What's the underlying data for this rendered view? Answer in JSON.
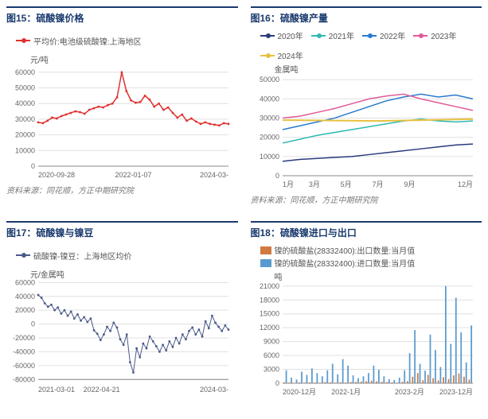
{
  "fig15": {
    "title": "图15：硫酸镍价格",
    "legend": [
      {
        "label": "平均价:电池级硫酸镍:上海地区",
        "color": "#e03030"
      }
    ],
    "ylabel": "元/吨",
    "type": "line",
    "ylim": [
      0,
      65000
    ],
    "yticks": [
      0,
      10000,
      20000,
      30000,
      40000,
      50000,
      60000
    ],
    "xticks": [
      "2020-09-28",
      "2022-01-07",
      "2024-03-"
    ],
    "series": [
      {
        "color": "#e03030",
        "width": 1.5,
        "marker": "dot",
        "y": [
          28000,
          27500,
          29000,
          31000,
          30500,
          32000,
          33000,
          34000,
          35000,
          34500,
          33500,
          36000,
          37000,
          38000,
          37500,
          39000,
          40000,
          44000,
          60000,
          48000,
          42000,
          40500,
          41000,
          45000,
          42500,
          38000,
          40000,
          36000,
          37500,
          34000,
          31000,
          33000,
          29000,
          30500,
          28500,
          27000,
          28000,
          27000,
          26500,
          26000,
          27500,
          27000
        ]
      }
    ],
    "source": "资料来源：同花顺，方正中期研究院"
  },
  "fig16": {
    "title": "图16：硫酸镍产量",
    "legend": [
      {
        "label": "2020年",
        "color": "#2a3a7a"
      },
      {
        "label": "2021年",
        "color": "#2fb8b0"
      },
      {
        "label": "2022年",
        "color": "#2a7ad0"
      },
      {
        "label": "2023年",
        "color": "#e05a9a"
      },
      {
        "label": "2024年",
        "color": "#e8c040"
      }
    ],
    "ylabel": "金属吨",
    "type": "line",
    "ylim": [
      0,
      53000
    ],
    "yticks": [
      0,
      10000,
      20000,
      30000,
      40000,
      50000
    ],
    "xticks": [
      "1月",
      "3月",
      "5月",
      "7月",
      "9月",
      "",
      "12月"
    ],
    "series": [
      {
        "color": "#2a3a7a",
        "width": 1.5,
        "y": [
          7500,
          8500,
          9000,
          9500,
          10000,
          11000,
          12000,
          13000,
          14000,
          15000,
          16000,
          16500
        ]
      },
      {
        "color": "#2fb8b0",
        "width": 1.5,
        "y": [
          17000,
          19000,
          21000,
          22500,
          24000,
          25500,
          27000,
          28500,
          29500,
          28500,
          28000,
          28500
        ]
      },
      {
        "color": "#2a7ad0",
        "width": 1.5,
        "y": [
          24000,
          26000,
          28000,
          30000,
          33000,
          36000,
          39000,
          41000,
          42500,
          41000,
          42000,
          40000
        ]
      },
      {
        "color": "#e05a9a",
        "width": 1.5,
        "y": [
          30000,
          31000,
          33000,
          35000,
          37500,
          40000,
          41500,
          42500,
          40000,
          38000,
          36000,
          34000
        ]
      },
      {
        "color": "#e8c040",
        "width": 2,
        "y": [
          29000,
          28500,
          29500
        ]
      }
    ],
    "source": "资料来源：同花顺，方正中期研究院"
  },
  "fig17": {
    "title": "图17：硫酸镍与镍豆",
    "legend": [
      {
        "label": "硫酸镍-镍豆：上海地区均价",
        "color": "#4a5a8a"
      }
    ],
    "ylabel": "元/金属吨",
    "type": "line",
    "ylim": [
      -82000,
      65000
    ],
    "yticks": [
      -80000,
      -60000,
      -40000,
      -20000,
      0,
      20000,
      40000,
      60000
    ],
    "xticks": [
      "2021-03-01",
      "2022-04-21",
      "",
      "2024-03-"
    ],
    "series": [
      {
        "color": "#4a5a8a",
        "width": 1,
        "marker": "dot",
        "y": [
          42000,
          38000,
          30000,
          25000,
          28000,
          20000,
          24000,
          15000,
          20000,
          12000,
          18000,
          8000,
          14000,
          5000,
          10000,
          3000,
          8000,
          -9000,
          -14000,
          -23000,
          -15000,
          -4000,
          -10000,
          2000,
          -5000,
          -22000,
          -30000,
          -15000,
          -55000,
          -70000,
          -35000,
          -48000,
          -28000,
          -35000,
          -18000,
          -25000,
          -32000,
          -40000,
          -30000,
          -38000,
          -25000,
          -33000,
          -20000,
          -28000,
          -15000,
          -22000,
          -10000,
          -5000,
          -15000,
          -8000,
          -18000,
          4000,
          -6000,
          12000,
          2000,
          -4000,
          -10000,
          -2000,
          -8000
        ]
      }
    ],
    "source": ""
  },
  "fig18": {
    "title": "图18：硫酸镍进口与出口",
    "legend": [
      {
        "label": "镍的硫酸盐(28332400):出口数量:当月值",
        "color": "#d07a40"
      },
      {
        "label": "镍的硫酸盐(28332400):进口数量:当月值",
        "color": "#5a9ad0"
      }
    ],
    "ylabel": "吨",
    "type": "bar",
    "ylim": [
      0,
      22000
    ],
    "ytick_step": 3000,
    "yticks": [
      0,
      3000,
      6000,
      9000,
      12000,
      15000,
      18000,
      21000
    ],
    "xticks": [
      "2020-12月",
      "",
      "2022-1月",
      "",
      "2023-2月",
      "",
      "2023-12月"
    ],
    "bars": {
      "export": {
        "color": "#d07a40",
        "y": [
          200,
          150,
          100,
          180,
          120,
          200,
          150,
          100,
          250,
          180,
          120,
          200,
          150,
          250,
          300,
          350,
          450,
          550,
          400,
          300,
          250,
          180,
          120,
          300,
          450,
          1400,
          2200,
          650,
          1800,
          1100,
          600,
          1300,
          900,
          1700,
          2100,
          1400,
          800
        ]
      },
      "import": {
        "color": "#5a9ad0",
        "y": [
          2800,
          1200,
          800,
          2500,
          1800,
          3200,
          2200,
          1500,
          2800,
          4200,
          1900,
          5200,
          3800,
          1700,
          1100,
          1500,
          2200,
          3800,
          2900,
          1500,
          900,
          700,
          1200,
          2800,
          6500,
          11500,
          4200,
          2700,
          10500,
          7200,
          3500,
          21000,
          8500,
          18500,
          11000,
          4500,
          12500
        ]
      }
    },
    "source": ""
  },
  "colors": {
    "grid": "#e0e0e0",
    "axis": "#888888",
    "text": "#666666",
    "title": "#1a3a6e"
  }
}
